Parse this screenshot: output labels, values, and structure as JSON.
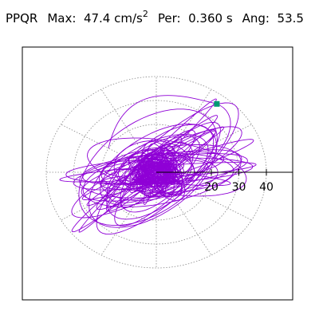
{
  "header": {
    "station": "PPQR",
    "max_label": "Max:",
    "max_value": "47.4 cm/s",
    "max_exp": "2",
    "period_label": "Per:",
    "period_value": "0.360 s",
    "angle_label": "Ang:",
    "angle_value": "53.5"
  },
  "chart_data": {
    "type": "polar-orbit",
    "title": "PPQR  Max: 47.4 cm/s2  Per: 0.360 s  Ang: 53.5",
    "radial_ticks": [
      20,
      30,
      40
    ],
    "radial_tick_labels": [
      "20",
      "30",
      "40"
    ],
    "grid": "dotted concentric ellipses with radial spokes",
    "trace_color": "#8f00d6",
    "marker_color": "#009a73",
    "orbit_end_point": {
      "r": 47.4,
      "angle_deg": 53.5
    }
  }
}
